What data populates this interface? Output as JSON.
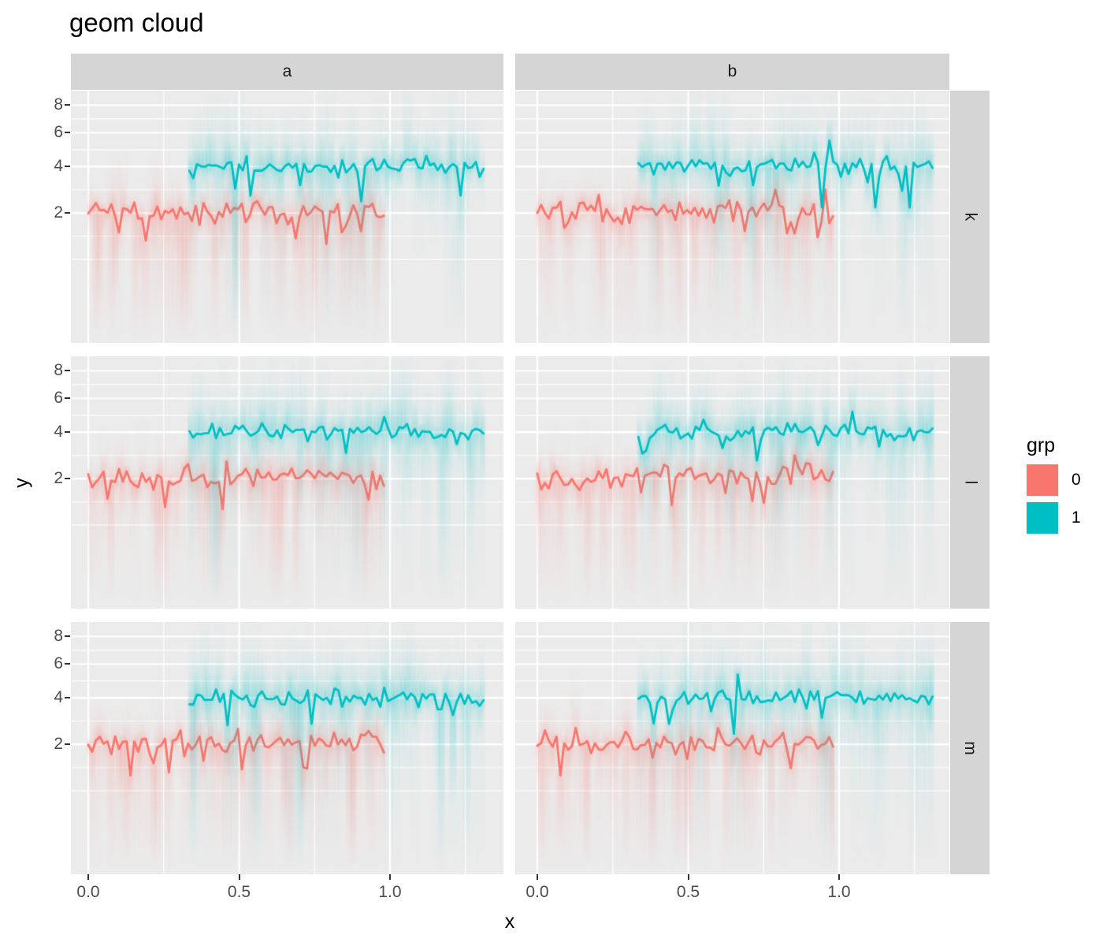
{
  "title": "geom cloud",
  "colors": {
    "red": "#F8766D",
    "teal": "#00BFC4",
    "panel_bg": "#EBEBEB",
    "strip_bg": "#D5D5D5",
    "grid": "#FFFFFF",
    "axis_text": "#4D4D4D",
    "tick_mark": "#333333",
    "strip_text": "#1A1A1A",
    "title_text": "#000000"
  },
  "chart_data": {
    "type": "line",
    "variant": "geom cloud - jagged mean lines with fuzzy gradient uncertainty clouds, faceted grid",
    "title": "geom cloud",
    "xlabel": "x",
    "ylabel": "y",
    "legend": {
      "title": "grp",
      "position": "right",
      "items": [
        {
          "label": "0",
          "color": "#F8766D"
        },
        {
          "label": "1",
          "color": "#00BFC4"
        }
      ]
    },
    "facet_cols": [
      "a",
      "b"
    ],
    "facet_rows": [
      "k",
      "l",
      "m"
    ],
    "x_ticks": {
      "values": [
        0.0,
        0.5,
        1.0
      ],
      "labels": [
        "0.0",
        "0.5",
        "1.0"
      ],
      "minor": [
        0.25,
        0.75,
        1.25
      ]
    },
    "y_ticks": {
      "values": [
        8,
        6,
        4,
        2
      ],
      "labels": [
        "8",
        "6",
        "4",
        "2"
      ]
    },
    "y_scale": {
      "type": "power",
      "exponent": 0.4,
      "note": "sqrt-like axis: 2,4,6,8 compress toward top, long stretch below 2"
    },
    "x_domain": [
      -0.06,
      1.38
    ],
    "y_domain": [
      0.01,
      9.0
    ],
    "grid": "white major and minor gridlines on grey panel",
    "series": [
      {
        "grp": "0",
        "color": "#F8766D",
        "x_start": 0.0,
        "x_end": 0.98,
        "y_mean": 2,
        "trend": 0.06,
        "jitter_sd": 0.105,
        "spike_prob": 0.1,
        "cloud_sd_up": 0.22,
        "cloud_sd_down": 0.3,
        "tail_prob": 0.17,
        "tail_mult": 5,
        "n_points": 78
      },
      {
        "grp": "1",
        "color": "#00BFC4",
        "x_start": 0.335,
        "x_end": 1.31,
        "y_mean": 4,
        "trend": 0.0,
        "jitter_sd": 0.055,
        "spike_prob": 0.08,
        "cloud_sd_up": 0.28,
        "cloud_sd_down": 0.22,
        "tail_prob": 0.14,
        "tail_mult": 2.5,
        "n_points": 78
      }
    ],
    "panels": [
      {
        "row": "k",
        "col": "a",
        "seed": 101
      },
      {
        "row": "k",
        "col": "b",
        "seed": 202
      },
      {
        "row": "l",
        "col": "a",
        "seed": 303
      },
      {
        "row": "l",
        "col": "b",
        "seed": 404
      },
      {
        "row": "m",
        "col": "a",
        "seed": 505
      },
      {
        "row": "m",
        "col": "b",
        "seed": 606
      }
    ]
  }
}
